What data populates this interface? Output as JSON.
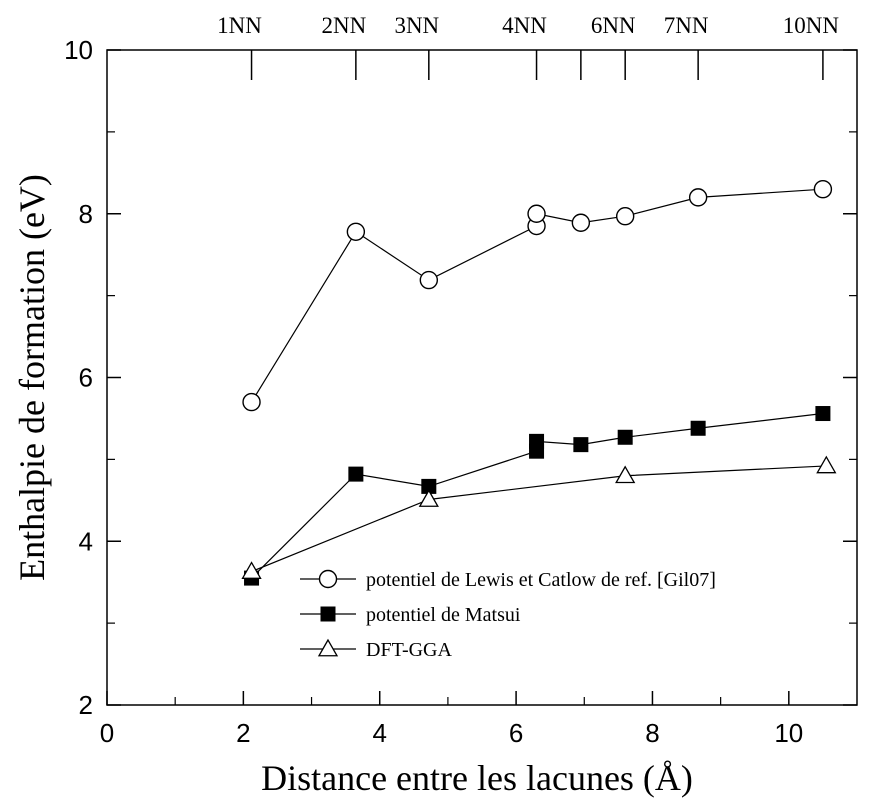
{
  "chart_data": {
    "type": "line",
    "xlabel": "Distance entre les lacunes (Å)",
    "ylabel": "Enthalpie de formation (eV)",
    "xlim": [
      0,
      11
    ],
    "ylim": [
      2,
      10
    ],
    "xticks": [
      0,
      2,
      4,
      6,
      8,
      10
    ],
    "yticks": [
      2,
      4,
      6,
      8,
      10
    ],
    "grid": false,
    "legend_position": "bottom-right",
    "top_axis": {
      "labels": [
        {
          "label": "1NN",
          "x": 2.12
        },
        {
          "label": "2NN",
          "x": 3.65
        },
        {
          "label": "3NN",
          "x": 4.72
        },
        {
          "label": "4NN",
          "x": 6.3
        },
        {
          "label": "6NN",
          "x": 7.6
        },
        {
          "label": "7NN",
          "x": 8.67
        },
        {
          "label": "10NN",
          "x": 10.5
        }
      ],
      "extra_ticks": [
        6.95
      ]
    },
    "series": [
      {
        "name": "potentiel de Lewis et Catlow de ref. [Gil07]",
        "marker": "open-circle",
        "x": [
          2.12,
          3.65,
          4.72,
          6.3,
          6.3,
          6.95,
          7.6,
          8.67,
          10.5
        ],
        "y": [
          5.7,
          7.78,
          7.19,
          7.85,
          8.0,
          7.89,
          7.97,
          8.2,
          8.3
        ]
      },
      {
        "name": "potentiel de Matsui",
        "marker": "filled-square",
        "x": [
          2.12,
          3.65,
          4.72,
          6.3,
          6.3,
          6.95,
          7.6,
          8.67,
          10.5
        ],
        "y": [
          3.55,
          4.82,
          4.67,
          5.1,
          5.22,
          5.18,
          5.27,
          5.38,
          5.56
        ]
      },
      {
        "name": "DFT-GGA",
        "marker": "open-triangle",
        "x": [
          2.12,
          4.72,
          7.6,
          10.55
        ],
        "y": [
          3.63,
          4.51,
          4.8,
          4.92
        ]
      }
    ]
  }
}
